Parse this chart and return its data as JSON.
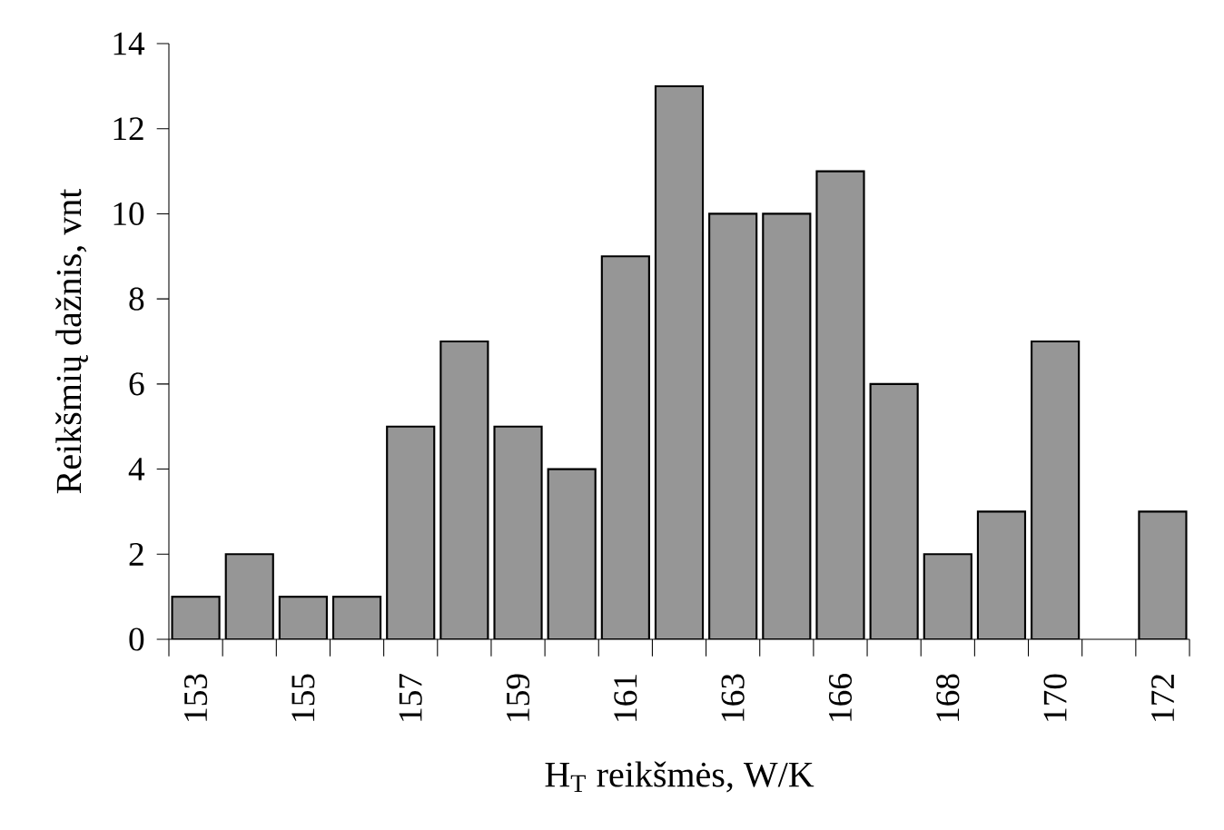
{
  "chart_data": {
    "type": "bar",
    "categories": [
      "153",
      null,
      "155",
      null,
      "157",
      null,
      "159",
      null,
      "161",
      null,
      "163",
      null,
      "166",
      null,
      "168",
      null,
      "170",
      null,
      "172"
    ],
    "values": [
      1,
      2,
      1,
      1,
      5,
      7,
      5,
      4,
      9,
      13,
      10,
      10,
      11,
      6,
      2,
      3,
      7,
      null,
      3
    ],
    "color": "#969696",
    "xlabel": "H$_{T}$ reikšmės, W/K",
    "ylabel": "Reikšmių dažnis, vnt",
    "ylim": [
      0,
      14
    ],
    "yticks": [
      0,
      2,
      4,
      6,
      8,
      10,
      12,
      14
    ]
  }
}
